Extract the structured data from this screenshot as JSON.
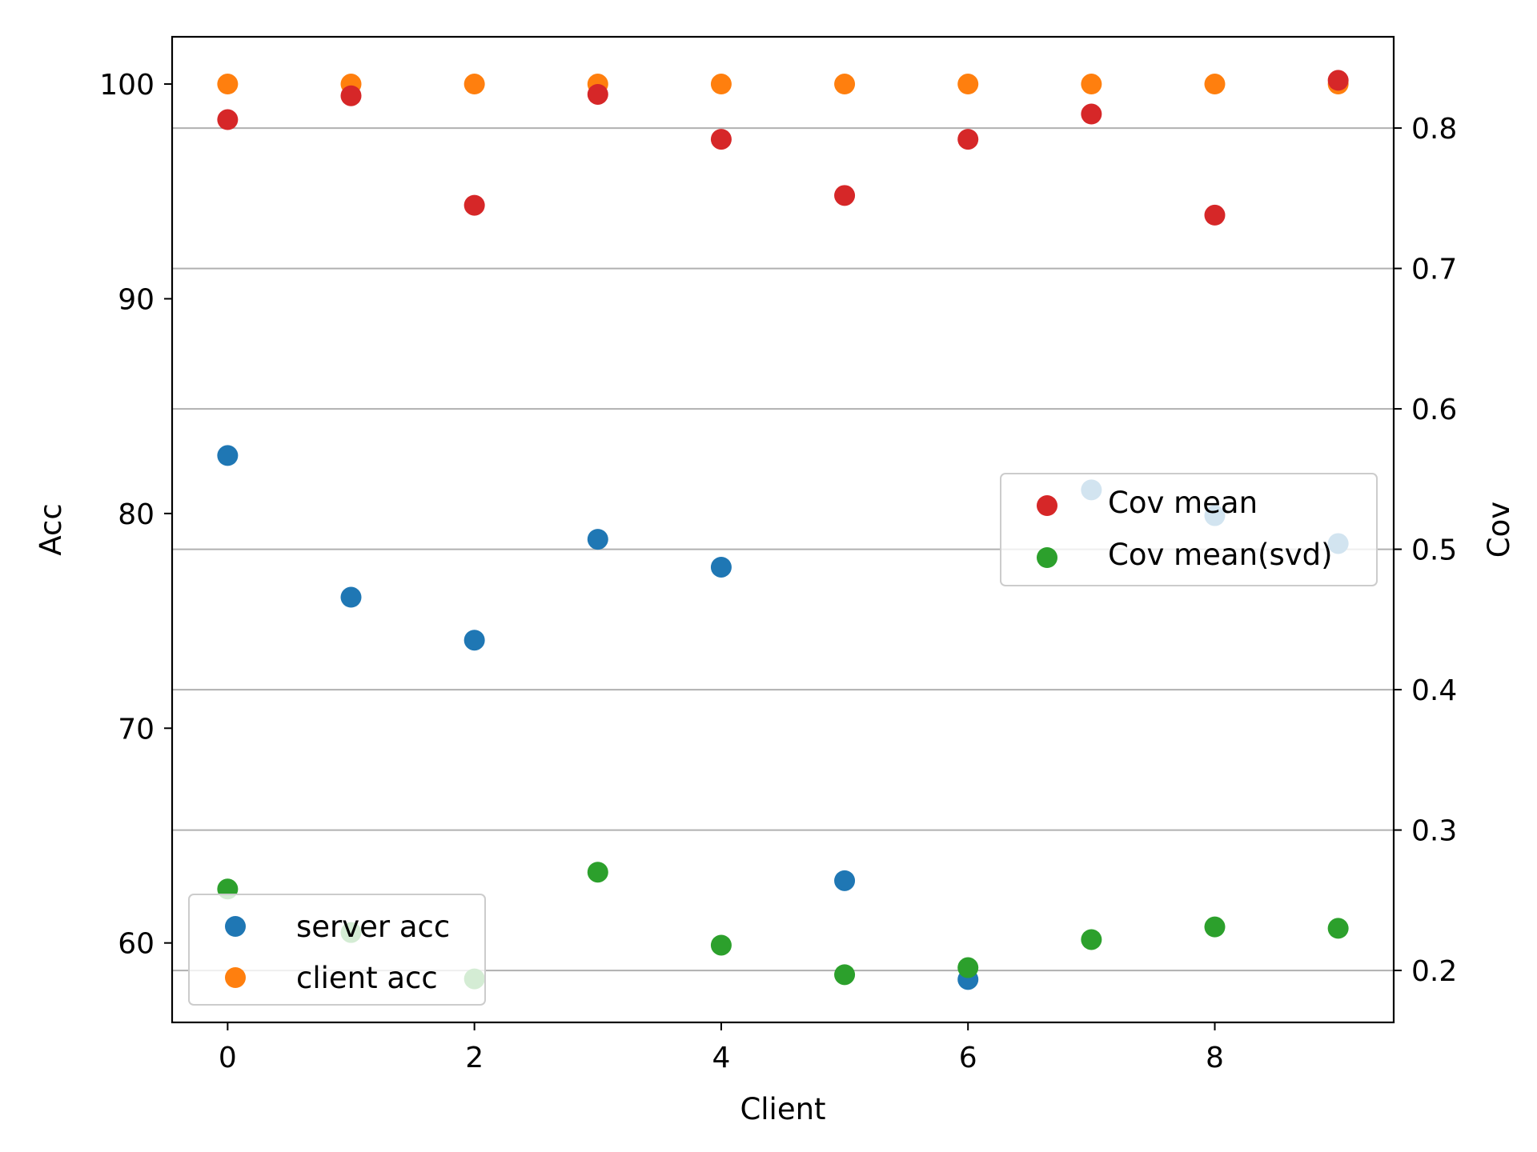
{
  "chart_data": {
    "type": "scatter",
    "title": "",
    "xlabel": "Client",
    "ylabel_left": "Acc",
    "ylabel_right": "Cov",
    "x": [
      0,
      1,
      2,
      3,
      4,
      5,
      6,
      7,
      8,
      9
    ],
    "xlim": [
      -0.45,
      9.45
    ],
    "ylim_left": [
      56.3,
      102.2
    ],
    "ylim_right": [
      0.163,
      0.865
    ],
    "x_ticks": [
      0,
      2,
      4,
      6,
      8
    ],
    "left_ticks": [
      60,
      70,
      80,
      90,
      100
    ],
    "right_ticks": [
      0.2,
      0.3,
      0.4,
      0.5,
      0.6,
      0.7,
      0.8
    ],
    "grid": "horizontal lines at right-axis ticks",
    "series": [
      {
        "name": "server acc",
        "axis": "left",
        "color": "#1f77b4",
        "values": [
          82.7,
          76.1,
          74.1,
          78.8,
          77.5,
          62.9,
          58.3,
          81.1,
          79.9,
          78.6
        ]
      },
      {
        "name": "client acc",
        "axis": "left",
        "color": "#ff7f0e",
        "values": [
          100,
          100,
          100,
          100,
          100,
          100,
          100,
          100,
          100,
          100
        ]
      },
      {
        "name": "Cov mean",
        "axis": "right",
        "color": "#d62728",
        "values": [
          0.806,
          0.823,
          0.745,
          0.824,
          0.792,
          0.752,
          0.792,
          0.81,
          0.738,
          0.834
        ]
      },
      {
        "name": "Cov mean(svd)",
        "axis": "right",
        "color": "#2ca02c",
        "values": [
          0.258,
          0.227,
          0.194,
          0.27,
          0.218,
          0.197,
          0.202,
          0.222,
          0.231,
          0.23
        ]
      }
    ],
    "legends": [
      {
        "position": "lower-left",
        "entries": [
          "server acc",
          "client acc"
        ]
      },
      {
        "position": "center-right",
        "entries": [
          "Cov mean",
          "Cov mean(svd)"
        ]
      }
    ]
  }
}
